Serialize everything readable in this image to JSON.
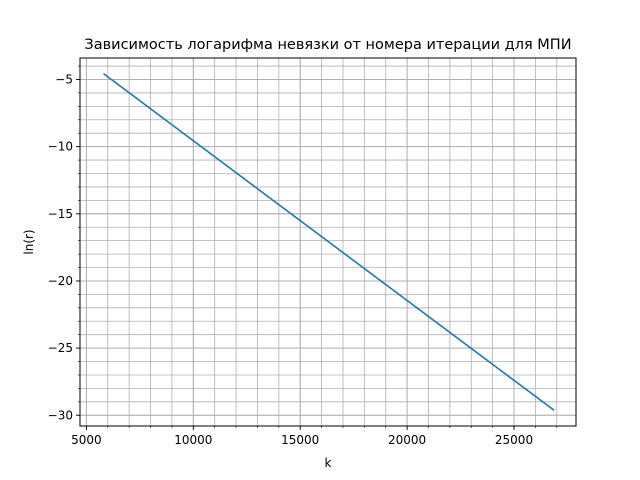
{
  "chart_data": {
    "type": "line",
    "title": "Зависимость логарифма невязки от номера итерации для МПИ",
    "xlabel": "k",
    "ylabel": "ln(r)",
    "xlim": [
      4700,
      27900
    ],
    "ylim": [
      -30.8,
      -3.4
    ],
    "x_ticks": [
      5000,
      10000,
      15000,
      20000,
      25000
    ],
    "x_tick_labels": [
      "5000",
      "10000",
      "15000",
      "20000",
      "25000"
    ],
    "y_ticks": [
      -5,
      -10,
      -15,
      -20,
      -25,
      -30
    ],
    "y_tick_labels": [
      "−5",
      "−10",
      "−15",
      "−20",
      "−25",
      "−30"
    ],
    "grid": "major and minor",
    "series": [
      {
        "color": "#1f77b4",
        "x": [
          5830,
          26850
        ],
        "y": [
          -4.6,
          -29.6
        ]
      }
    ]
  }
}
